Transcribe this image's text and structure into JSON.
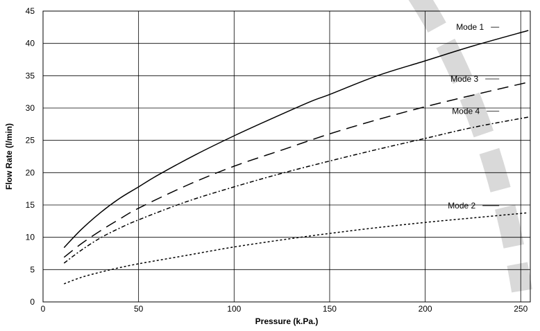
{
  "chart_data": {
    "type": "line",
    "title": "",
    "xlabel": "Pressure (k.Pa.)",
    "ylabel": "Flow Rate (l/min)",
    "xlim": [
      0,
      255
    ],
    "ylim": [
      0,
      45
    ],
    "x_ticks": [
      0,
      50,
      100,
      150,
      200,
      250
    ],
    "y_ticks": [
      0,
      5,
      10,
      15,
      20,
      25,
      30,
      35,
      40,
      45
    ],
    "grid": true,
    "series": [
      {
        "name": "Mode 1",
        "style": "solid",
        "x": [
          11,
          20,
          30,
          40,
          50,
          60,
          80,
          100,
          120,
          140,
          150,
          175,
          200,
          225,
          254
        ],
        "y": [
          8.4,
          11.2,
          13.8,
          16.0,
          17.8,
          19.6,
          22.8,
          25.7,
          28.4,
          31.0,
          32.1,
          35.0,
          37.3,
          39.6,
          42.0
        ]
      },
      {
        "name": "Mode 2",
        "style": "dotted",
        "x": [
          11,
          20,
          30,
          40,
          50,
          75,
          100,
          125,
          150,
          175,
          200,
          225,
          254
        ],
        "y": [
          2.8,
          3.8,
          4.6,
          5.3,
          5.9,
          7.2,
          8.5,
          9.6,
          10.6,
          11.5,
          12.3,
          13.0,
          13.8
        ]
      },
      {
        "name": "Mode 3",
        "style": "dashed",
        "x": [
          11,
          20,
          30,
          40,
          50,
          75,
          100,
          125,
          150,
          175,
          200,
          225,
          254
        ],
        "y": [
          6.9,
          9.0,
          11.0,
          12.8,
          14.5,
          18.0,
          21.0,
          23.5,
          26.0,
          28.2,
          30.2,
          32.0,
          34.0
        ]
      },
      {
        "name": "Mode 4",
        "style": "dash-dot",
        "x": [
          11,
          20,
          30,
          40,
          50,
          75,
          100,
          125,
          150,
          175,
          200,
          225,
          254
        ],
        "y": [
          6.0,
          8.0,
          9.9,
          11.4,
          12.7,
          15.5,
          17.8,
          19.9,
          21.8,
          23.6,
          25.3,
          27.0,
          28.6
        ]
      }
    ]
  }
}
